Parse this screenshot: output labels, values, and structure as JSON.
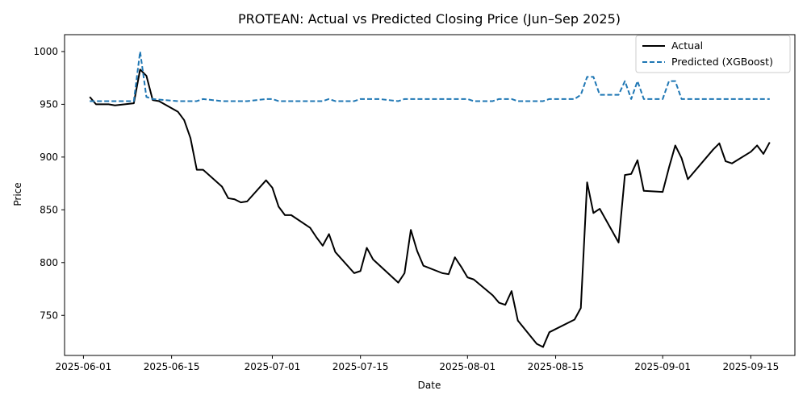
{
  "chart_data": {
    "type": "line",
    "title": "PROTEAN: Actual vs Predicted Closing Price (Jun–Sep 2025)",
    "xlabel": "Date",
    "ylabel": "Price",
    "xlim": [
      "2025-05-29",
      "2025-09-22"
    ],
    "ylim": [
      712,
      1016
    ],
    "x_ticks": [
      "2025-06-01",
      "2025-06-15",
      "2025-07-01",
      "2025-07-15",
      "2025-08-01",
      "2025-08-15",
      "2025-09-01",
      "2025-09-15"
    ],
    "y_ticks": [
      750,
      800,
      850,
      900,
      950,
      1000
    ],
    "legend_position": "top-right",
    "series": [
      {
        "name": "Actual",
        "color": "#000000",
        "style": "solid",
        "points": [
          [
            "2025-06-02",
            957
          ],
          [
            "2025-06-03",
            950
          ],
          [
            "2025-06-05",
            950
          ],
          [
            "2025-06-06",
            949
          ],
          [
            "2025-06-09",
            951
          ],
          [
            "2025-06-10",
            983
          ],
          [
            "2025-06-11",
            977
          ],
          [
            "2025-06-12",
            954
          ],
          [
            "2025-06-13",
            953
          ],
          [
            "2025-06-16",
            943
          ],
          [
            "2025-06-17",
            935
          ],
          [
            "2025-06-18",
            918
          ],
          [
            "2025-06-19",
            888
          ],
          [
            "2025-06-20",
            888
          ],
          [
            "2025-06-23",
            872
          ],
          [
            "2025-06-24",
            861
          ],
          [
            "2025-06-25",
            860
          ],
          [
            "2025-06-26",
            857
          ],
          [
            "2025-06-27",
            858
          ],
          [
            "2025-06-30",
            878
          ],
          [
            "2025-07-01",
            871
          ],
          [
            "2025-07-02",
            853
          ],
          [
            "2025-07-03",
            845
          ],
          [
            "2025-07-04",
            845
          ],
          [
            "2025-07-07",
            833
          ],
          [
            "2025-07-08",
            824
          ],
          [
            "2025-07-09",
            816
          ],
          [
            "2025-07-10",
            827
          ],
          [
            "2025-07-11",
            810
          ],
          [
            "2025-07-14",
            790
          ],
          [
            "2025-07-15",
            792
          ],
          [
            "2025-07-16",
            814
          ],
          [
            "2025-07-17",
            803
          ],
          [
            "2025-07-21",
            781
          ],
          [
            "2025-07-22",
            790
          ],
          [
            "2025-07-23",
            831
          ],
          [
            "2025-07-24",
            811
          ],
          [
            "2025-07-25",
            797
          ],
          [
            "2025-07-28",
            790
          ],
          [
            "2025-07-29",
            789
          ],
          [
            "2025-07-30",
            805
          ],
          [
            "2025-07-31",
            796
          ],
          [
            "2025-08-01",
            786
          ],
          [
            "2025-08-02",
            784
          ],
          [
            "2025-08-05",
            769
          ],
          [
            "2025-08-06",
            762
          ],
          [
            "2025-08-07",
            760
          ],
          [
            "2025-08-08",
            773
          ],
          [
            "2025-08-09",
            745
          ],
          [
            "2025-08-12",
            723
          ],
          [
            "2025-08-13",
            720
          ],
          [
            "2025-08-14",
            734
          ],
          [
            "2025-08-18",
            746
          ],
          [
            "2025-08-19",
            757
          ],
          [
            "2025-08-20",
            876
          ],
          [
            "2025-08-21",
            847
          ],
          [
            "2025-08-22",
            851
          ],
          [
            "2025-08-25",
            819
          ],
          [
            "2025-08-26",
            883
          ],
          [
            "2025-08-27",
            884
          ],
          [
            "2025-08-28",
            897
          ],
          [
            "2025-08-29",
            868
          ],
          [
            "2025-09-01",
            867
          ],
          [
            "2025-09-02",
            890
          ],
          [
            "2025-09-03",
            911
          ],
          [
            "2025-09-04",
            899
          ],
          [
            "2025-09-05",
            879
          ],
          [
            "2025-09-09",
            907
          ],
          [
            "2025-09-10",
            913
          ],
          [
            "2025-09-11",
            896
          ],
          [
            "2025-09-12",
            894
          ],
          [
            "2025-09-15",
            905
          ],
          [
            "2025-09-16",
            911
          ],
          [
            "2025-09-17",
            903
          ],
          [
            "2025-09-18",
            914
          ]
        ]
      },
      {
        "name": "Predicted (XGBoost)",
        "color": "#1f77b4",
        "style": "dashed",
        "points": [
          [
            "2025-06-02",
            953
          ],
          [
            "2025-06-03",
            953
          ],
          [
            "2025-06-06",
            953
          ],
          [
            "2025-06-09",
            953
          ],
          [
            "2025-06-10",
            1000
          ],
          [
            "2025-06-11",
            957
          ],
          [
            "2025-06-12",
            955
          ],
          [
            "2025-06-16",
            953
          ],
          [
            "2025-06-19",
            953
          ],
          [
            "2025-06-20",
            955
          ],
          [
            "2025-06-23",
            953
          ],
          [
            "2025-06-27",
            953
          ],
          [
            "2025-06-30",
            955
          ],
          [
            "2025-07-01",
            955
          ],
          [
            "2025-07-02",
            953
          ],
          [
            "2025-07-09",
            953
          ],
          [
            "2025-07-10",
            955
          ],
          [
            "2025-07-11",
            953
          ],
          [
            "2025-07-14",
            953
          ],
          [
            "2025-07-15",
            955
          ],
          [
            "2025-07-18",
            955
          ],
          [
            "2025-07-21",
            953
          ],
          [
            "2025-07-22",
            955
          ],
          [
            "2025-08-01",
            955
          ],
          [
            "2025-08-02",
            953
          ],
          [
            "2025-08-05",
            953
          ],
          [
            "2025-08-06",
            955
          ],
          [
            "2025-08-08",
            955
          ],
          [
            "2025-08-09",
            953
          ],
          [
            "2025-08-13",
            953
          ],
          [
            "2025-08-14",
            955
          ],
          [
            "2025-08-18",
            955
          ],
          [
            "2025-08-19",
            959
          ],
          [
            "2025-08-20",
            976
          ],
          [
            "2025-08-21",
            976
          ],
          [
            "2025-08-22",
            959
          ],
          [
            "2025-08-25",
            959
          ],
          [
            "2025-08-26",
            972
          ],
          [
            "2025-08-27",
            955
          ],
          [
            "2025-08-28",
            972
          ],
          [
            "2025-08-29",
            955
          ],
          [
            "2025-09-01",
            955
          ],
          [
            "2025-09-02",
            972
          ],
          [
            "2025-09-03",
            972
          ],
          [
            "2025-09-04",
            955
          ],
          [
            "2025-09-18",
            955
          ]
        ]
      }
    ]
  }
}
